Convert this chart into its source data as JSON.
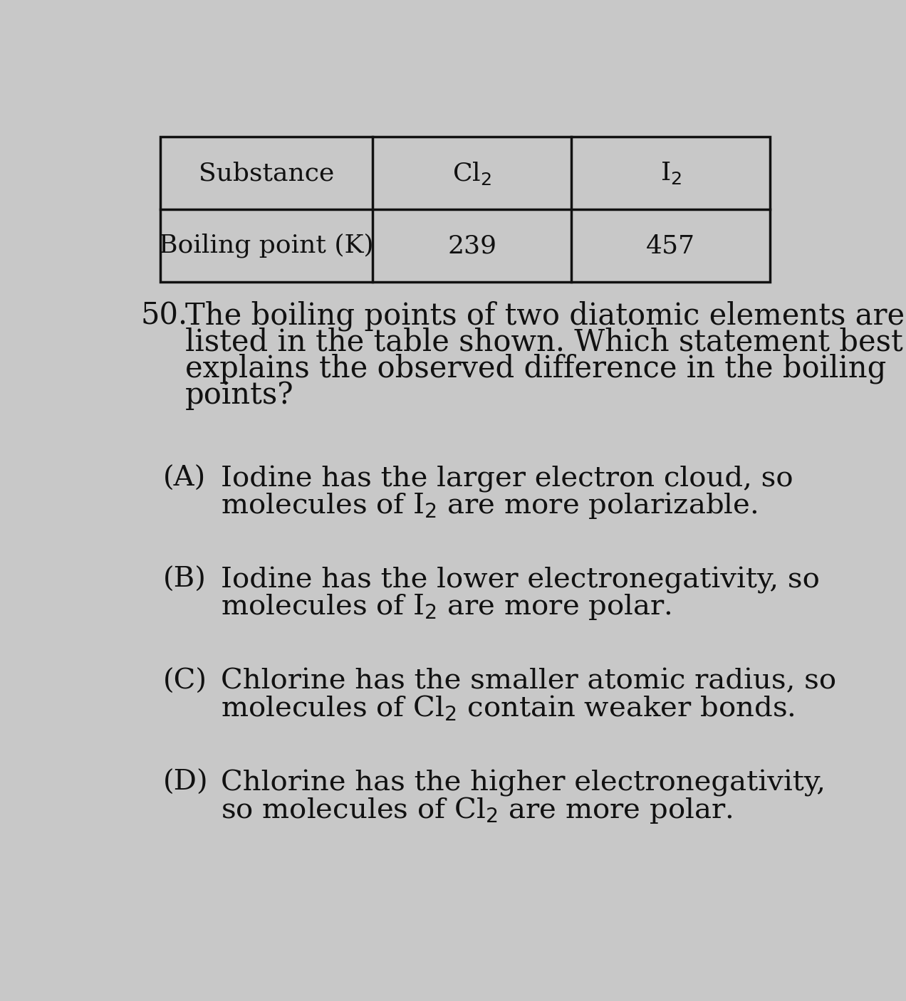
{
  "bg_color": "#c8c8c8",
  "text_color": "#111111",
  "table": {
    "col1_header": "Substance",
    "col2_header": "Cl$_2$",
    "col3_header": "I$_2$",
    "col1_row2": "Boiling point (K)",
    "col2_row2": "239",
    "col3_row2": "457"
  },
  "question_number": "50.",
  "question_lines": [
    "The boiling points of two diatomic elements are",
    "listed in the table shown. Which statement best",
    "explains the observed difference in the boiling",
    "points?"
  ],
  "options": [
    {
      "label": "(A)",
      "line1": "Iodine has the larger electron cloud, so",
      "line2": "molecules of I$_2$ are more polarizable."
    },
    {
      "label": "(B)",
      "line1": "Iodine has the lower electronegativity, so",
      "line2": "molecules of I$_2$ are more polar."
    },
    {
      "label": "(C)",
      "line1": "Chlorine has the smaller atomic radius, so",
      "line2": "molecules of Cl$_2$ contain weaker bonds."
    },
    {
      "label": "(D)",
      "line1": "Chlorine has the higher electronegativity,",
      "line2": "so molecules of Cl$_2$ are more polar."
    }
  ],
  "font_size_table": 26,
  "font_size_question": 30,
  "font_size_options": 29
}
